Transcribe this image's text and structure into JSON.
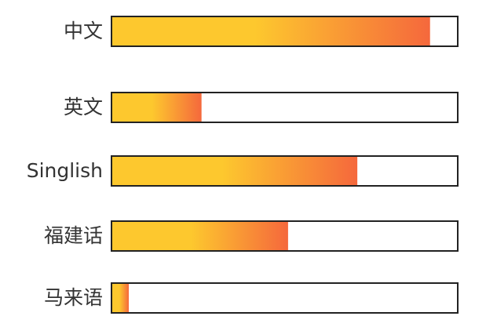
{
  "chart_data": {
    "type": "bar",
    "orientation": "horizontal",
    "categories": [
      "中文",
      "英文",
      "Singlish",
      "福建话",
      "马来语"
    ],
    "values": [
      92,
      26,
      71,
      51,
      5
    ],
    "xlim": [
      0,
      100
    ],
    "gradient": [
      "#fdc82e",
      "#f5683c"
    ],
    "frame_color": "#222"
  }
}
